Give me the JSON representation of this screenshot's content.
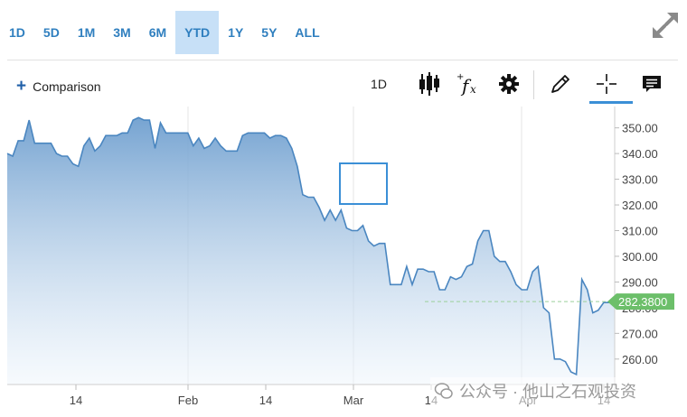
{
  "ranges": [
    {
      "label": "1D",
      "active": false
    },
    {
      "label": "5D",
      "active": false
    },
    {
      "label": "1M",
      "active": false
    },
    {
      "label": "3M",
      "active": false
    },
    {
      "label": "6M",
      "active": false
    },
    {
      "label": "YTD",
      "active": true
    },
    {
      "label": "1Y",
      "active": false
    },
    {
      "label": "5Y",
      "active": false
    },
    {
      "label": "ALL",
      "active": false
    }
  ],
  "toolbar": {
    "comparison_label": "Comparison",
    "interval_label": "1D",
    "icons": [
      "candlestick-icon",
      "fx-icon",
      "gear-icon",
      "pencil-icon",
      "crosshair-icon",
      "comment-icon"
    ]
  },
  "colors": {
    "accent": "#2f7fbf",
    "line": "#4a86c0",
    "price_tag": "#6cbf6a",
    "active_tab": "#c7e0f7"
  },
  "chart_data": {
    "type": "area",
    "x_tick_labels": [
      "14",
      "Feb",
      "14",
      "Mar",
      "14",
      "Apr",
      "14"
    ],
    "y_ticks": [
      260,
      270,
      280,
      290,
      300,
      310,
      320,
      330,
      340,
      350
    ],
    "y_tick_labels": [
      "260.00",
      "270.00",
      "280.00",
      "290.00",
      "300.00",
      "310.00",
      "320.00",
      "330.00",
      "340.00",
      "350.00"
    ],
    "ylim": [
      251.5,
      355.5
    ],
    "current_value": 282.38,
    "current_label": "282.3800",
    "values": [
      340,
      339,
      345,
      345,
      353,
      344,
      344,
      344,
      344,
      340,
      339,
      339,
      336,
      335,
      343,
      346,
      341,
      343,
      347,
      347,
      347,
      348,
      348,
      353,
      354,
      353,
      353,
      342,
      352,
      348,
      348,
      348,
      348,
      348,
      343,
      346,
      342,
      343,
      346,
      343,
      341,
      341,
      341,
      347,
      348,
      348,
      348,
      348,
      346,
      347,
      347,
      346,
      342,
      335,
      324,
      323,
      323,
      319,
      314,
      318,
      314,
      318,
      311,
      310,
      310,
      312,
      306,
      304,
      305,
      305,
      289,
      289,
      289,
      296,
      289,
      295,
      295,
      294,
      294,
      287,
      287,
      292,
      291,
      292,
      296,
      297,
      306,
      310,
      310,
      300,
      298,
      298,
      294,
      289,
      287,
      287,
      294,
      296,
      280,
      278,
      260,
      260,
      259,
      255,
      254,
      291,
      287,
      278,
      279,
      282,
      282,
      282.38
    ]
  },
  "watermark_text": "公众号 · 他山之石观投资"
}
